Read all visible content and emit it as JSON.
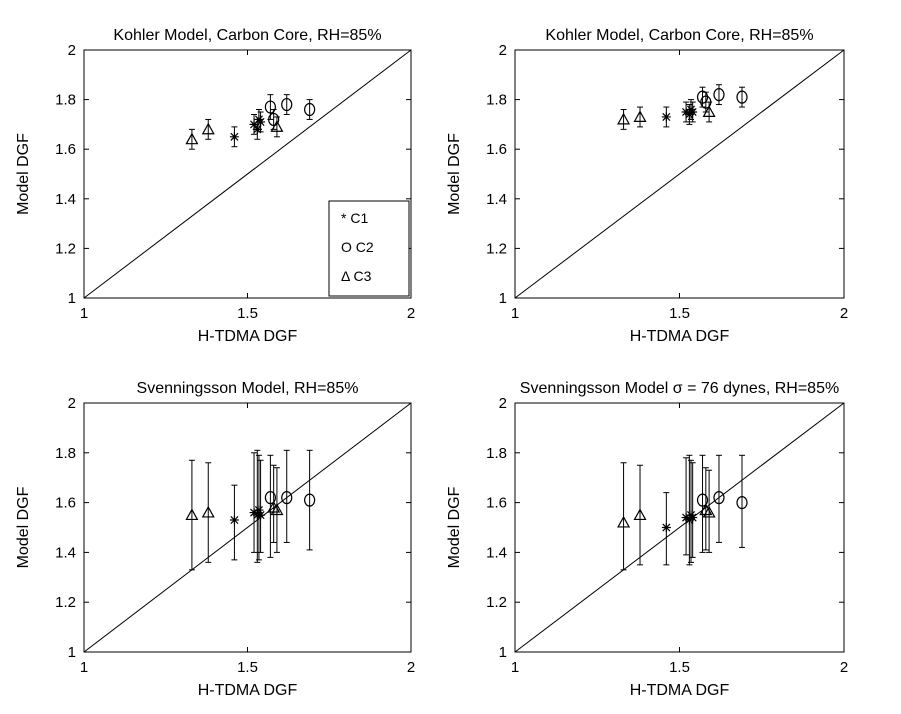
{
  "chart_data": [
    {
      "type": "scatter",
      "title": "Kohler Model, Carbon Core, RH=85%",
      "xlabel": "H-TDMA DGF",
      "ylabel": "Model DGF",
      "xlim": [
        1,
        2
      ],
      "ylim": [
        1,
        2
      ],
      "xticks": [
        "1",
        "1.5",
        "2"
      ],
      "yticks": [
        "1",
        "1.2",
        "1.4",
        "1.6",
        "1.8",
        "2"
      ],
      "reference_line": "y = x",
      "legend": {
        "placement": "lower-right",
        "entries": [
          "* C1",
          "O C2",
          "Δ C3"
        ]
      },
      "series": [
        {
          "name": "C1",
          "marker": "*",
          "points": [
            {
              "x": 1.46,
              "y": 1.65,
              "yerr": 0.04
            },
            {
              "x": 1.52,
              "y": 1.7,
              "yerr": 0.04
            },
            {
              "x": 1.53,
              "y": 1.68,
              "yerr": 0.04
            },
            {
              "x": 1.535,
              "y": 1.72,
              "yerr": 0.04
            },
            {
              "x": 1.54,
              "y": 1.71,
              "yerr": 0.04
            }
          ]
        },
        {
          "name": "C2",
          "marker": "o",
          "points": [
            {
              "x": 1.57,
              "y": 1.77,
              "yerr": 0.05
            },
            {
              "x": 1.62,
              "y": 1.78,
              "yerr": 0.04
            },
            {
              "x": 1.69,
              "y": 1.76,
              "yerr": 0.04
            },
            {
              "x": 1.58,
              "y": 1.72,
              "yerr": 0.04
            }
          ]
        },
        {
          "name": "C3",
          "marker": "^",
          "points": [
            {
              "x": 1.33,
              "y": 1.64,
              "yerr": 0.04
            },
            {
              "x": 1.38,
              "y": 1.68,
              "yerr": 0.04
            },
            {
              "x": 1.59,
              "y": 1.69,
              "yerr": 0.04
            }
          ]
        }
      ]
    },
    {
      "type": "scatter",
      "title": "Kohler Model, Carbon Core, RH=85%",
      "xlabel": "H-TDMA DGF",
      "ylabel": "Model DGF",
      "xlim": [
        1,
        2
      ],
      "ylim": [
        1,
        2
      ],
      "xticks": [
        "1",
        "1.5",
        "2"
      ],
      "yticks": [
        "1",
        "1.2",
        "1.4",
        "1.6",
        "1.8",
        "2"
      ],
      "reference_line": "y = x",
      "series": [
        {
          "name": "C1",
          "marker": "*",
          "points": [
            {
              "x": 1.46,
              "y": 1.73,
              "yerr": 0.04
            },
            {
              "x": 1.52,
              "y": 1.75,
              "yerr": 0.04
            },
            {
              "x": 1.53,
              "y": 1.74,
              "yerr": 0.04
            },
            {
              "x": 1.535,
              "y": 1.76,
              "yerr": 0.04
            },
            {
              "x": 1.54,
              "y": 1.75,
              "yerr": 0.04
            }
          ]
        },
        {
          "name": "C2",
          "marker": "o",
          "points": [
            {
              "x": 1.57,
              "y": 1.81,
              "yerr": 0.04
            },
            {
              "x": 1.62,
              "y": 1.82,
              "yerr": 0.04
            },
            {
              "x": 1.69,
              "y": 1.81,
              "yerr": 0.04
            },
            {
              "x": 1.58,
              "y": 1.79,
              "yerr": 0.04
            }
          ]
        },
        {
          "name": "C3",
          "marker": "^",
          "points": [
            {
              "x": 1.33,
              "y": 1.72,
              "yerr": 0.04
            },
            {
              "x": 1.38,
              "y": 1.73,
              "yerr": 0.04
            },
            {
              "x": 1.59,
              "y": 1.75,
              "yerr": 0.04
            }
          ]
        }
      ]
    },
    {
      "type": "scatter",
      "title": "Svenningsson Model, RH=85%",
      "xlabel": "H-TDMA DGF",
      "ylabel": "Model DGF",
      "xlim": [
        1,
        2
      ],
      "ylim": [
        1,
        2
      ],
      "xticks": [
        "1",
        "1.5",
        "2"
      ],
      "yticks": [
        "1",
        "1.2",
        "1.4",
        "1.6",
        "1.8",
        "2"
      ],
      "reference_line": "y = x",
      "series": [
        {
          "name": "C1",
          "marker": "*",
          "points": [
            {
              "x": 1.46,
              "y": 1.53,
              "ylo": 1.37,
              "yhi": 1.67
            },
            {
              "x": 1.52,
              "y": 1.56,
              "ylo": 1.4,
              "yhi": 1.8
            },
            {
              "x": 1.53,
              "y": 1.55,
              "ylo": 1.36,
              "yhi": 1.81
            },
            {
              "x": 1.535,
              "y": 1.57,
              "ylo": 1.37,
              "yhi": 1.79
            },
            {
              "x": 1.54,
              "y": 1.55,
              "ylo": 1.4,
              "yhi": 1.77
            }
          ]
        },
        {
          "name": "C2",
          "marker": "o",
          "points": [
            {
              "x": 1.57,
              "y": 1.62,
              "ylo": 1.38,
              "yhi": 1.79
            },
            {
              "x": 1.62,
              "y": 1.62,
              "ylo": 1.44,
              "yhi": 1.81
            },
            {
              "x": 1.69,
              "y": 1.61,
              "ylo": 1.41,
              "yhi": 1.81
            }
          ]
        },
        {
          "name": "C3",
          "marker": "^",
          "points": [
            {
              "x": 1.33,
              "y": 1.55,
              "ylo": 1.33,
              "yhi": 1.77
            },
            {
              "x": 1.38,
              "y": 1.56,
              "ylo": 1.36,
              "yhi": 1.76
            },
            {
              "x": 1.58,
              "y": 1.58,
              "ylo": 1.44,
              "yhi": 1.75
            },
            {
              "x": 1.59,
              "y": 1.57,
              "ylo": 1.4,
              "yhi": 1.74
            }
          ]
        }
      ]
    },
    {
      "type": "scatter",
      "title": "Svenningsson Model σ = 76 dynes, RH=85%",
      "xlabel": "H-TDMA DGF",
      "ylabel": "Model DGF",
      "xlim": [
        1,
        2
      ],
      "ylim": [
        1,
        2
      ],
      "xticks": [
        "1",
        "1.5",
        "2"
      ],
      "yticks": [
        "1",
        "1.2",
        "1.4",
        "1.6",
        "1.8",
        "2"
      ],
      "reference_line": "y = x",
      "series": [
        {
          "name": "C1",
          "marker": "*",
          "points": [
            {
              "x": 1.46,
              "y": 1.5,
              "ylo": 1.35,
              "yhi": 1.64
            },
            {
              "x": 1.52,
              "y": 1.54,
              "ylo": 1.39,
              "yhi": 1.78
            },
            {
              "x": 1.53,
              "y": 1.53,
              "ylo": 1.35,
              "yhi": 1.79
            },
            {
              "x": 1.535,
              "y": 1.55,
              "ylo": 1.36,
              "yhi": 1.77
            },
            {
              "x": 1.54,
              "y": 1.54,
              "ylo": 1.38,
              "yhi": 1.76
            }
          ]
        },
        {
          "name": "C2",
          "marker": "o",
          "points": [
            {
              "x": 1.57,
              "y": 1.61,
              "ylo": 1.4,
              "yhi": 1.79
            },
            {
              "x": 1.62,
              "y": 1.62,
              "ylo": 1.44,
              "yhi": 1.79
            },
            {
              "x": 1.69,
              "y": 1.6,
              "ylo": 1.42,
              "yhi": 1.79
            }
          ]
        },
        {
          "name": "C3",
          "marker": "^",
          "points": [
            {
              "x": 1.33,
              "y": 1.52,
              "ylo": 1.33,
              "yhi": 1.76
            },
            {
              "x": 1.38,
              "y": 1.55,
              "ylo": 1.35,
              "yhi": 1.75
            },
            {
              "x": 1.58,
              "y": 1.57,
              "ylo": 1.41,
              "yhi": 1.74
            },
            {
              "x": 1.59,
              "y": 1.56,
              "ylo": 1.4,
              "yhi": 1.73
            }
          ]
        }
      ]
    }
  ]
}
